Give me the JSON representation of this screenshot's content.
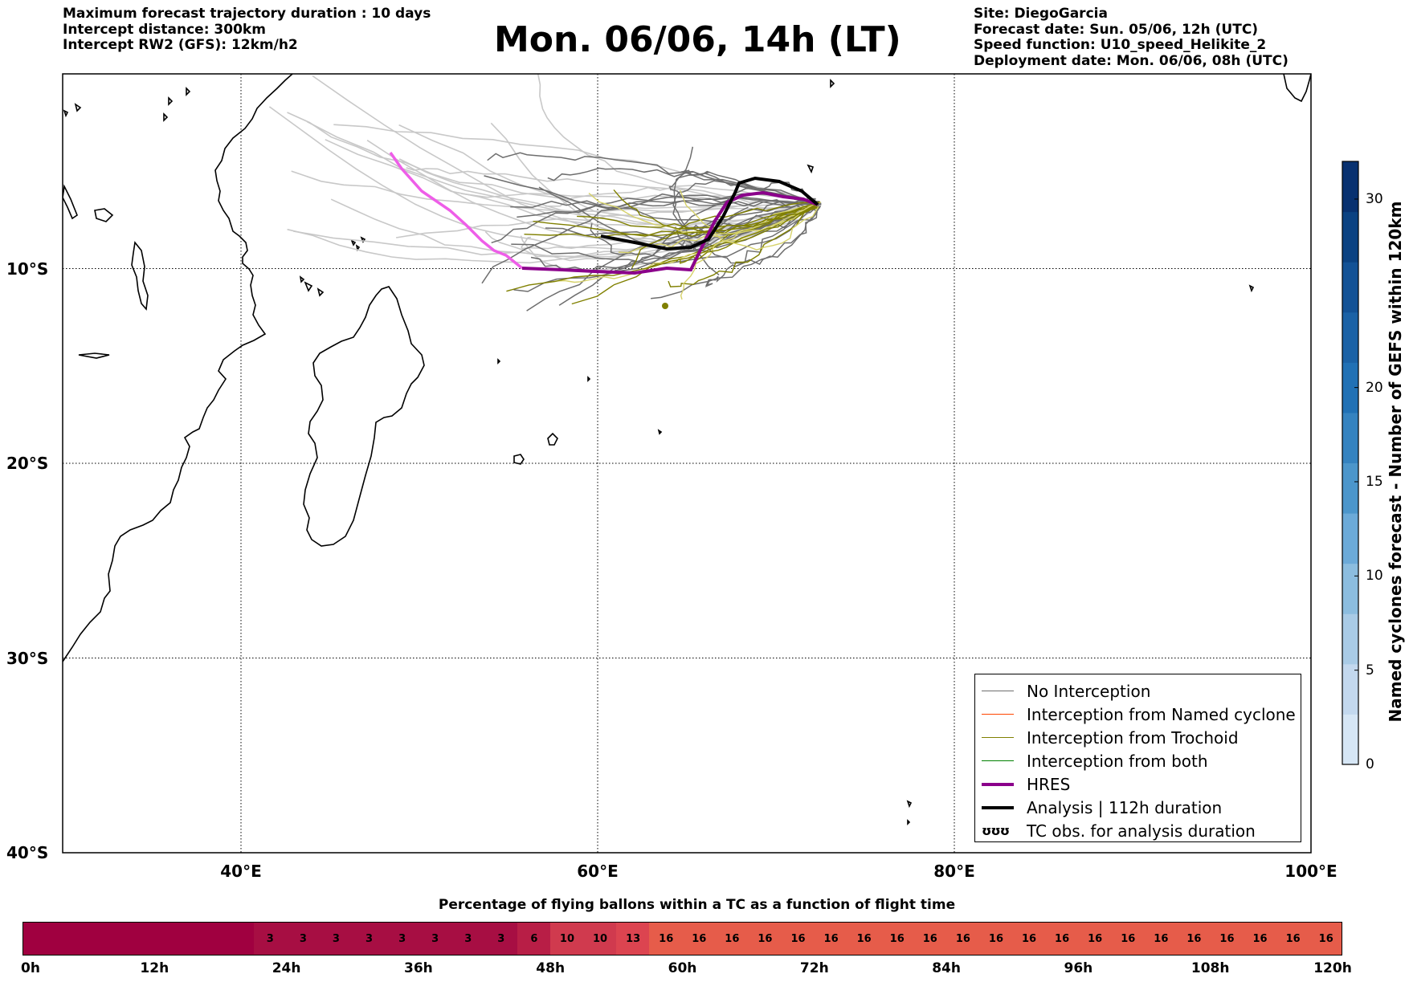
{
  "header_left": [
    "Maximum forecast trajectory duration : 10 days",
    "Intercept distance: 300km",
    "Intercept RW2 (GFS):  12km/h2"
  ],
  "title": "Mon. 06/06, 14h (LT)",
  "header_right": [
    "Site: DiegoGarcia",
    "Forecast date: Sun. 05/06, 12h (UTC)",
    "Speed function: U10_speed_Helikite_2",
    "Deployment date: Mon. 06/06, 08h (UTC)"
  ],
  "map": {
    "lon_range": [
      30,
      100
    ],
    "lat_range": [
      -40,
      0
    ],
    "lon_ticks": [
      {
        "value": 40,
        "label": "40°E"
      },
      {
        "value": 60,
        "label": "60°E"
      },
      {
        "value": 80,
        "label": "80°E"
      },
      {
        "value": 100,
        "label": "100°E"
      }
    ],
    "lat_ticks": [
      {
        "value": -10,
        "label": "10°S"
      },
      {
        "value": -20,
        "label": "20°S"
      },
      {
        "value": -30,
        "label": "30°S"
      },
      {
        "value": -40,
        "label": "40°S"
      }
    ],
    "gridlines": "dotted",
    "colors": {
      "no_interception": "#6e6e6e",
      "named_cyclone": "#ff4500",
      "trochoid": "#808000",
      "both": "#008000",
      "hres": "#8b008b",
      "analysis": "#000000",
      "light_track": "#c8c8c8"
    }
  },
  "legend": {
    "items": [
      {
        "label": "No Interception",
        "style": "line",
        "color": "#6e6e6e"
      },
      {
        "label": "Interception from Named cyclone",
        "style": "line",
        "color": "#ff4500"
      },
      {
        "label": "Interception from Trochoid",
        "style": "line",
        "color": "#808000"
      },
      {
        "label": "Interception from both",
        "style": "line",
        "color": "#008000"
      },
      {
        "label": "HRES",
        "style": "thick",
        "color": "#8b008b"
      },
      {
        "label": "Analysis | 112h duration",
        "style": "thick",
        "color": "#000000"
      },
      {
        "label": "TC obs. for analysis duration",
        "style": "symbol",
        "symbol": "ʊʊʊ"
      }
    ]
  },
  "colorbar": {
    "label": "Named cyclones forecast - Number of GEFS within 120km",
    "range": [
      0,
      32
    ],
    "ticks": [
      0,
      5,
      10,
      15,
      20,
      30
    ],
    "colors": [
      "#d6e6f5",
      "#c3d8ee",
      "#a9cbe6",
      "#8cbddf",
      "#6caad8",
      "#4c96cb",
      "#3583c0",
      "#2171b5",
      "#1b62a6",
      "#135296",
      "#0b4282",
      "#083170"
    ]
  },
  "bottom_bar": {
    "title": "Percentage of flying ballons within a TC as a function of flight time",
    "tick_labels": [
      "0h",
      "12h",
      "24h",
      "36h",
      "48h",
      "60h",
      "72h",
      "84h",
      "96h",
      "108h",
      "120h"
    ],
    "cells": [
      "",
      "",
      "",
      "",
      "",
      "",
      "",
      "3",
      "3",
      "3",
      "3",
      "3",
      "3",
      "3",
      "3",
      "6",
      "10",
      "10",
      "13",
      "16",
      "16",
      "16",
      "16",
      "16",
      "16",
      "16",
      "16",
      "16",
      "16",
      "16",
      "16",
      "16",
      "16",
      "16",
      "16",
      "16",
      "16",
      "16",
      "16",
      "16"
    ],
    "colors": {
      "low": "#a00040",
      "mid": "#a70e43",
      "six": "#b81e46",
      "ten": "#d03a4e",
      "thirteen": "#dc4450",
      "sixteen": "#e65c4a"
    }
  }
}
